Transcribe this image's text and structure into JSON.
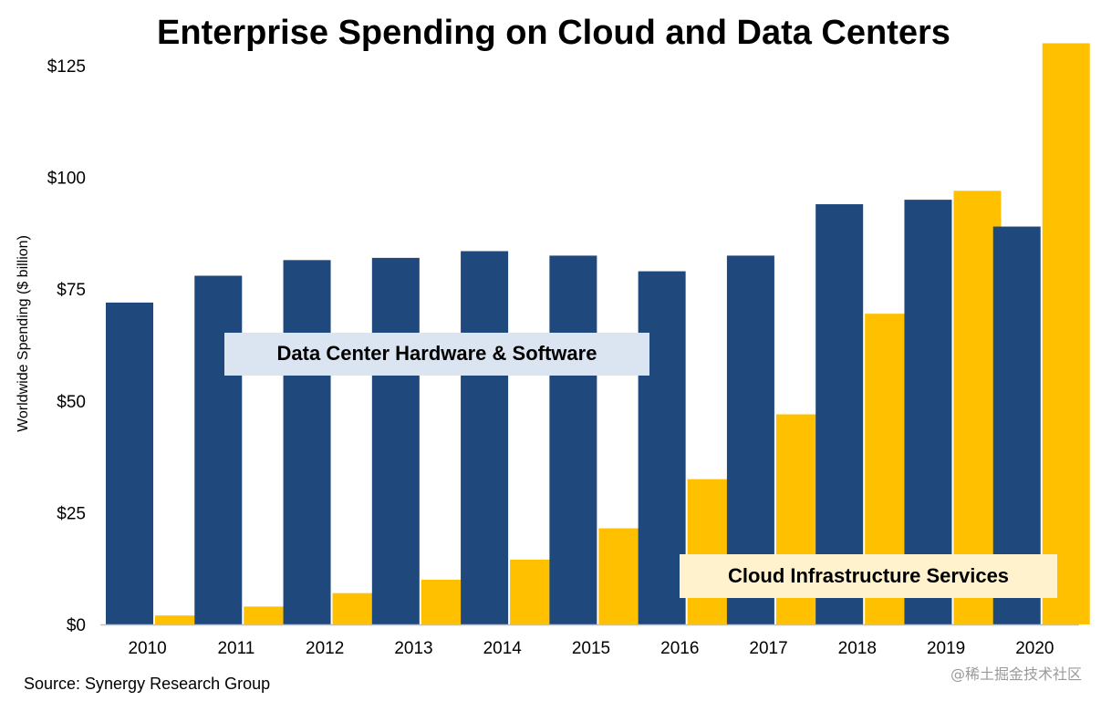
{
  "chart_data": {
    "type": "bar",
    "title": "Enterprise Spending on Cloud and Data Centers",
    "ylabel": "Worldwide Spending ($ billion)",
    "xlabel": "",
    "ylim": [
      0,
      125
    ],
    "yticks": [
      "$0",
      "$25",
      "$50",
      "$75",
      "$100",
      "$125"
    ],
    "ytick_values": [
      0,
      25,
      50,
      75,
      100,
      125
    ],
    "categories": [
      "2010",
      "2011",
      "2012",
      "2013",
      "2014",
      "2015",
      "2016",
      "2017",
      "2018",
      "2019",
      "2020"
    ],
    "series": [
      {
        "name": "Data Center Hardware & Software",
        "color": "#1f497d",
        "values": [
          72,
          78,
          81.5,
          82,
          83.5,
          82.5,
          79,
          82.5,
          94,
          95,
          89
        ]
      },
      {
        "name": "Cloud Infrastructure Services",
        "color": "#ffc000",
        "values": [
          2,
          4,
          7,
          10,
          14.5,
          21.5,
          32.5,
          47,
          69.5,
          97,
          130
        ]
      }
    ],
    "legend_label_colors": [
      "#dbe5f1",
      "#fff2cc"
    ],
    "grid": false,
    "legend": "inline labels"
  },
  "source": "Source: Synergy Research Group",
  "watermark": "@稀土掘金技术社区"
}
